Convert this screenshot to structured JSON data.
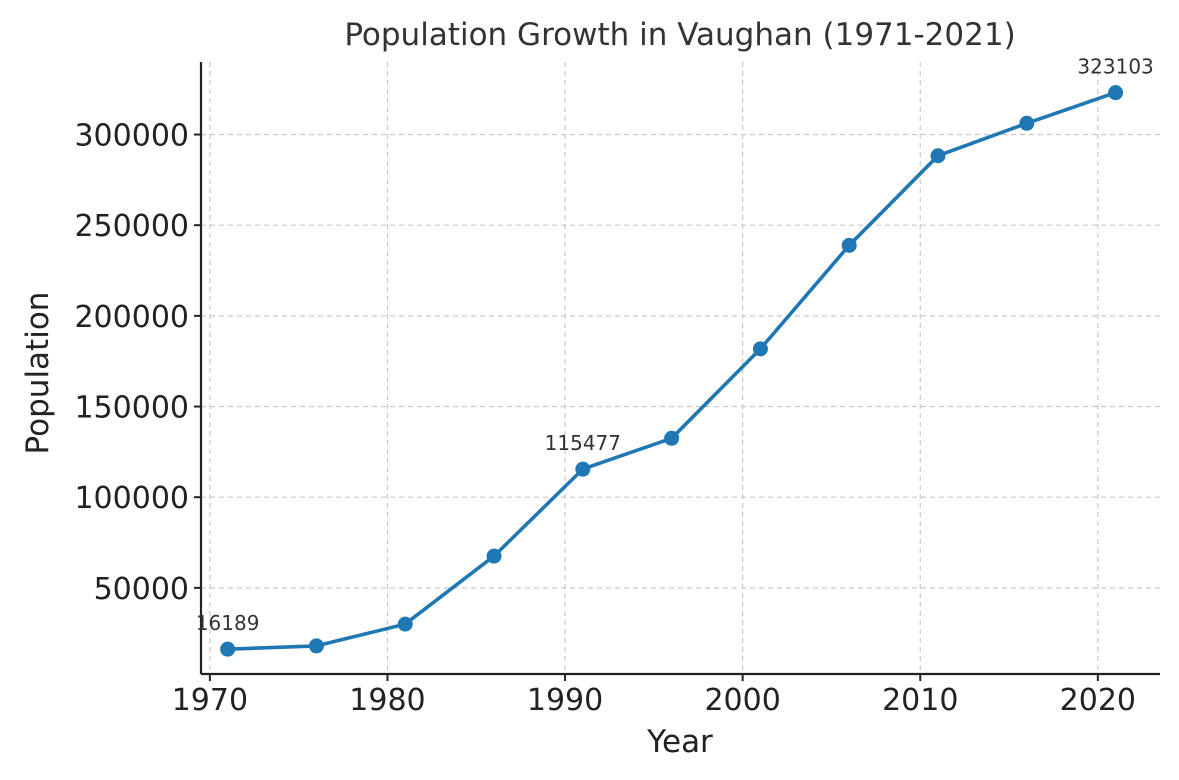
{
  "chart_data": {
    "type": "line",
    "title": "Population Growth in Vaughan (1971-2021)",
    "xlabel": "Year",
    "ylabel": "Population",
    "x": [
      1971,
      1976,
      1981,
      1986,
      1991,
      1996,
      2001,
      2006,
      2011,
      2016,
      2021
    ],
    "series": [
      {
        "values": [
          16189,
          18000,
          30000,
          67500,
          115477,
          132500,
          181800,
          238900,
          288300,
          306200,
          323103
        ],
        "color": "#1f77b4",
        "marker": "circle"
      }
    ],
    "xlim": [
      1969.5,
      2023.5
    ],
    "ylim": [
      2500,
      340000
    ],
    "xticks": [
      1970,
      1980,
      1990,
      2000,
      2010,
      2020
    ],
    "yticks": [
      50000,
      100000,
      150000,
      200000,
      250000,
      300000
    ],
    "xtick_labels": [
      "1970",
      "1980",
      "1990",
      "2000",
      "2010",
      "2020"
    ],
    "ytick_labels": [
      "50000",
      "100000",
      "150000",
      "200000",
      "250000",
      "300000"
    ],
    "annotations": [
      {
        "x": 1971,
        "y": 16189,
        "text": "16189"
      },
      {
        "x": 1991,
        "y": 115477,
        "text": "115477"
      },
      {
        "x": 2021,
        "y": 323103,
        "text": "323103"
      }
    ],
    "grid": true,
    "legend": "none"
  }
}
